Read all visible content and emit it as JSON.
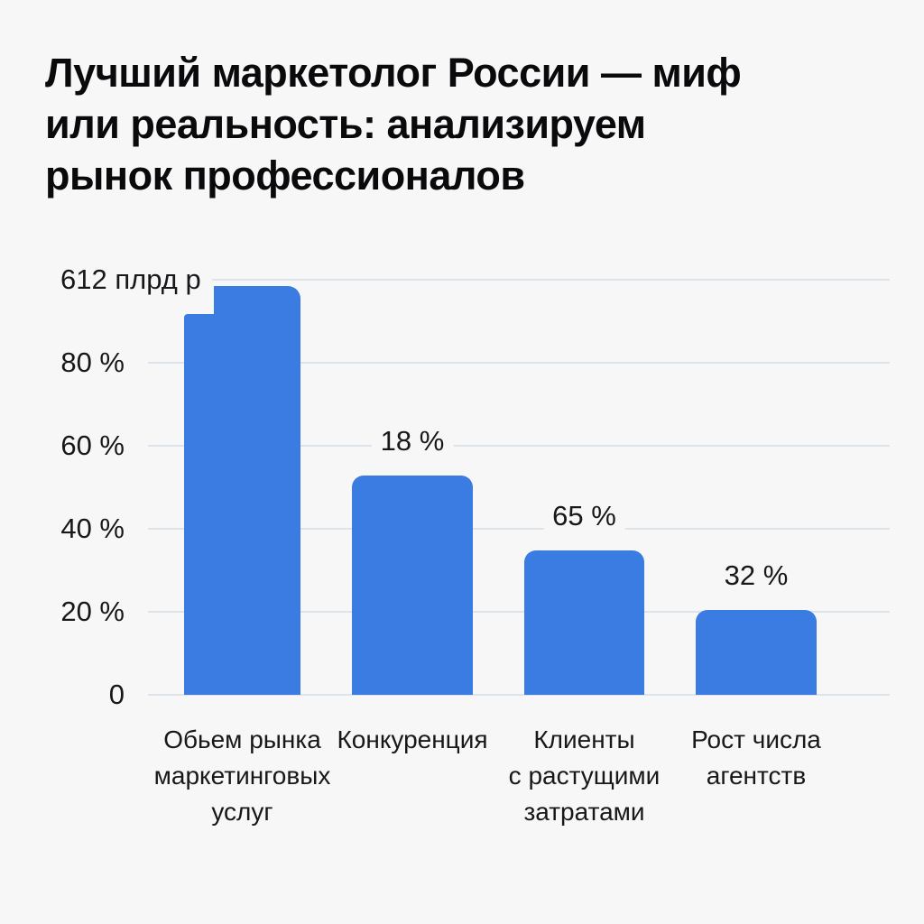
{
  "title": {
    "lines": [
      "Лучший маркетолог России — миф",
      "или реальность: анализируем",
      "рынок профессионалов"
    ]
  },
  "colors": {
    "background": "#f7f7f8",
    "bar_blue": "#3a7ce2",
    "gridline": "#dde4ec",
    "title_text": "#0a0a0c",
    "label_text": "#17181a"
  },
  "chart_data": {
    "type": "bar",
    "title": "Лучший маркетолог России — миф или реальность: анализируем рынок профессионалов",
    "xlabel": "",
    "ylabel": "",
    "grid": true,
    "legend": false,
    "y_axis": {
      "ticks": [
        {
          "label": "612 плрд р",
          "pct": 100,
          "special": true
        },
        {
          "label": "80 %",
          "pct": 80
        },
        {
          "label": "60 %",
          "pct": 60
        },
        {
          "label": "40 %",
          "pct": 40
        },
        {
          "label": "20 %",
          "pct": 20
        },
        {
          "label": "0",
          "pct": 0
        }
      ]
    },
    "bars": [
      {
        "category": "Обьем рынка маркетинговых услуг",
        "category_lines": [
          "Обьем рынка",
          "маркетинговых",
          "услуг"
        ],
        "value_label": "",
        "axis_value_label": "612 плрд р",
        "displayed_height_pct": 91.7,
        "step_cap_height_pct": 98.5
      },
      {
        "category": "Конкуренция",
        "category_lines": [
          "Конкуренция"
        ],
        "value_label": "18 %",
        "displayed_height_pct": 52.8
      },
      {
        "category": "Клиенты с растущими затратами",
        "category_lines": [
          "Клиенты",
          "с растущими",
          "затратами"
        ],
        "value_label": "65 %",
        "displayed_height_pct": 34.8
      },
      {
        "category": "Рост числа агентств",
        "category_lines": [
          "Рост числа",
          "агентств"
        ],
        "value_label": "32 %",
        "displayed_height_pct": 20.4
      }
    ]
  }
}
